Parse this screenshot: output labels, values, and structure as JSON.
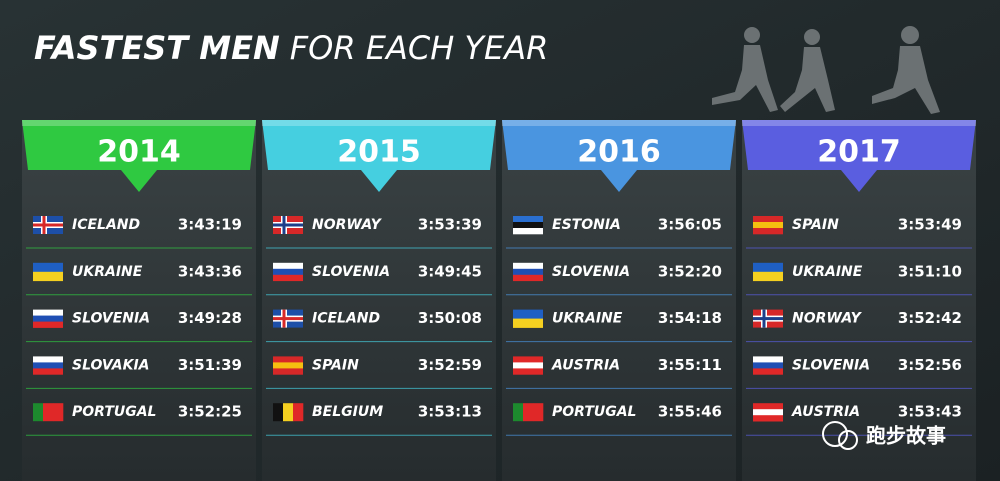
{
  "title": {
    "bold": "FASTEST MEN",
    "rest": "FOR EACH YEAR"
  },
  "watermark": "跑步故事",
  "columns": [
    {
      "year": "2014",
      "color": "#2fc941",
      "rows": [
        {
          "country": "ICELAND",
          "time": "3:43:19",
          "flag_layout": "cross",
          "flag_colors": [
            "#1d4fa8",
            "#ffffff",
            "#d72828"
          ]
        },
        {
          "country": "UKRAINE",
          "time": "3:43:36",
          "flag_layout": "horizontal",
          "flag_colors": [
            "#1f5fc4",
            "#f5d020"
          ]
        },
        {
          "country": "SLOVENIA",
          "time": "3:49:28",
          "flag_layout": "horizontal",
          "flag_colors": [
            "#ffffff",
            "#1f4fb4",
            "#e02828"
          ]
        },
        {
          "country": "SLOVAKIA",
          "time": "3:51:39",
          "flag_layout": "horizontal",
          "flag_colors": [
            "#ffffff",
            "#1f4fb4",
            "#e02828"
          ]
        },
        {
          "country": "PORTUGAL",
          "time": "3:52:25",
          "flag_layout": "vertical",
          "flag_colors": [
            "#1d8a2e",
            "#e02828",
            "#e02828"
          ]
        }
      ]
    },
    {
      "year": "2015",
      "color": "#45cfe0",
      "rows": [
        {
          "country": "NORWAY",
          "time": "3:53:39",
          "flag_layout": "cross",
          "flag_colors": [
            "#d72828",
            "#ffffff",
            "#1d3f8a"
          ]
        },
        {
          "country": "SLOVENIA",
          "time": "3:49:45",
          "flag_layout": "horizontal",
          "flag_colors": [
            "#ffffff",
            "#1f4fb4",
            "#e02828"
          ]
        },
        {
          "country": "ICELAND",
          "time": "3:50:08",
          "flag_layout": "cross",
          "flag_colors": [
            "#1d4fa8",
            "#ffffff",
            "#d72828"
          ]
        },
        {
          "country": "SPAIN",
          "time": "3:52:59",
          "flag_layout": "horizontal",
          "flag_colors": [
            "#d72828",
            "#f5c010",
            "#d72828"
          ]
        },
        {
          "country": "BELGIUM",
          "time": "3:53:13",
          "flag_layout": "vertical",
          "flag_colors": [
            "#111111",
            "#f5d020",
            "#e02828"
          ]
        }
      ]
    },
    {
      "year": "2016",
      "color": "#4a95e0",
      "rows": [
        {
          "country": "ESTONIA",
          "time": "3:56:05",
          "flag_layout": "horizontal",
          "flag_colors": [
            "#2a6fd0",
            "#111111",
            "#ffffff"
          ]
        },
        {
          "country": "SLOVENIA",
          "time": "3:52:20",
          "flag_layout": "horizontal",
          "flag_colors": [
            "#ffffff",
            "#1f4fb4",
            "#e02828"
          ]
        },
        {
          "country": "UKRAINE",
          "time": "3:54:18",
          "flag_layout": "horizontal",
          "flag_colors": [
            "#1f5fc4",
            "#f5d020"
          ]
        },
        {
          "country": "AUSTRIA",
          "time": "3:55:11",
          "flag_layout": "horizontal",
          "flag_colors": [
            "#e02828",
            "#ffffff",
            "#e02828"
          ]
        },
        {
          "country": "PORTUGAL",
          "time": "3:55:46",
          "flag_layout": "vertical",
          "flag_colors": [
            "#1d8a2e",
            "#e02828",
            "#e02828"
          ]
        }
      ]
    },
    {
      "year": "2017",
      "color": "#5a5ee0",
      "rows": [
        {
          "country": "SPAIN",
          "time": "3:53:49",
          "flag_layout": "horizontal",
          "flag_colors": [
            "#d72828",
            "#f5c010",
            "#d72828"
          ]
        },
        {
          "country": "UKRAINE",
          "time": "3:51:10",
          "flag_layout": "horizontal",
          "flag_colors": [
            "#1f5fc4",
            "#f5d020"
          ]
        },
        {
          "country": "NORWAY",
          "time": "3:52:42",
          "flag_layout": "cross",
          "flag_colors": [
            "#d72828",
            "#ffffff",
            "#1d3f8a"
          ]
        },
        {
          "country": "SLOVENIA",
          "time": "3:52:56",
          "flag_layout": "horizontal",
          "flag_colors": [
            "#ffffff",
            "#1f4fb4",
            "#e02828"
          ]
        },
        {
          "country": "AUSTRIA",
          "time": "3:53:43",
          "flag_layout": "horizontal",
          "flag_colors": [
            "#e02828",
            "#ffffff",
            "#e02828"
          ]
        }
      ]
    }
  ]
}
